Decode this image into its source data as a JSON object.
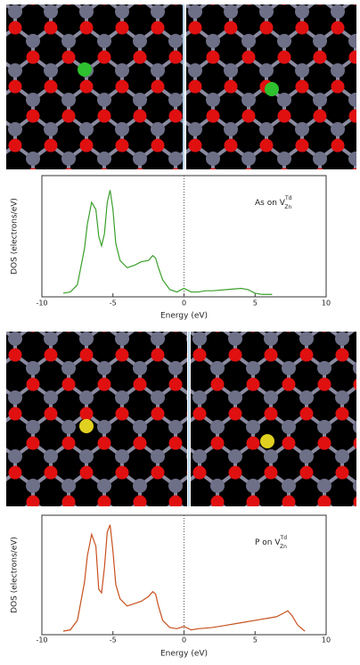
{
  "chart_data": [
    {
      "type": "line",
      "x_label": "Energy (eV)",
      "y_label": "DOS (electrons/eV)",
      "annotation": {
        "text": "As on V",
        "superscript": "Td",
        "subscript": "Zn"
      },
      "xlim": [
        -10,
        10
      ],
      "xticks": [
        -10,
        -5,
        0,
        5,
        10
      ],
      "ylim": [
        0,
        5
      ],
      "reference_line_x": 0,
      "x": [
        -8.5,
        -8,
        -7.5,
        -7,
        -6.8,
        -6.5,
        -6.2,
        -6,
        -5.8,
        -5.6,
        -5.4,
        -5.2,
        -5,
        -4.8,
        -4.5,
        -4,
        -3.5,
        -3,
        -2.5,
        -2.2,
        -2,
        -1.8,
        -1.5,
        -1,
        -0.5,
        0,
        0.5,
        1,
        1.5,
        2,
        3,
        4,
        4.5,
        5,
        5.5,
        6,
        6.2
      ],
      "values": [
        0.15,
        0.2,
        0.5,
        2.0,
        3.0,
        3.9,
        3.6,
        2.5,
        2.1,
        2.6,
        3.9,
        4.4,
        3.6,
        2.2,
        1.5,
        1.2,
        1.3,
        1.45,
        1.5,
        1.7,
        1.6,
        1.2,
        0.7,
        0.3,
        0.2,
        0.35,
        0.2,
        0.2,
        0.25,
        0.25,
        0.3,
        0.35,
        0.3,
        0.15,
        0.1,
        0.1,
        0.1
      ],
      "color": "#3aa02a"
    },
    {
      "type": "line",
      "x_label": "Energy (eV)",
      "y_label": "DOS (electrons/eV)",
      "annotation": {
        "text": "P on V",
        "superscript": "Td",
        "subscript": "Zn"
      },
      "xlim": [
        -10,
        10
      ],
      "xticks": [
        -10,
        -5,
        0,
        5,
        10
      ],
      "ylim": [
        0,
        5
      ],
      "reference_line_x": 0,
      "x": [
        -8.5,
        -8,
        -7.5,
        -7,
        -6.8,
        -6.5,
        -6.2,
        -6,
        -5.8,
        -5.6,
        -5.4,
        -5.2,
        -5,
        -4.8,
        -4.5,
        -4,
        -3.5,
        -3,
        -2.5,
        -2.2,
        -2,
        -1.8,
        -1.5,
        -1,
        -0.5,
        0,
        0.5,
        1,
        2,
        3,
        4,
        5,
        5.5,
        6,
        6.5,
        7,
        7.3,
        7.6,
        8,
        8.5
      ],
      "values": [
        0.15,
        0.2,
        0.6,
        2.2,
        3.3,
        4.2,
        3.7,
        1.9,
        1.75,
        2.8,
        4.3,
        4.6,
        3.5,
        2.1,
        1.5,
        1.2,
        1.3,
        1.4,
        1.6,
        1.8,
        1.7,
        1.2,
        0.6,
        0.3,
        0.25,
        0.35,
        0.2,
        0.25,
        0.3,
        0.4,
        0.5,
        0.6,
        0.65,
        0.7,
        0.75,
        0.9,
        1.0,
        0.8,
        0.4,
        0.15
      ],
      "color": "#c8501e"
    }
  ]
}
